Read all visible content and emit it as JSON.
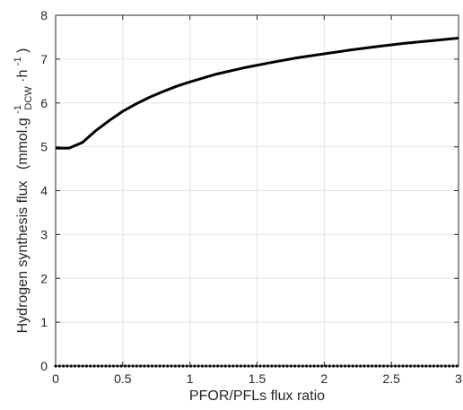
{
  "chart_data": {
    "type": "line",
    "xlabel": "PFOR/PFLs flux ratio",
    "ylabel": {
      "main": "Hydrogen synthesis flux",
      "unit_open": "(mmol.g",
      "sup1": "-1",
      "sub": "DCW",
      "unit_mid": "·h",
      "sup2": "-1",
      "unit_close": ")"
    },
    "xlim": [
      0,
      3
    ],
    "ylim": [
      0,
      8
    ],
    "xticks": [
      0,
      0.5,
      1,
      1.5,
      2,
      2.5,
      3
    ],
    "xtick_labels": [
      "0",
      "0.5",
      "1",
      "1.5",
      "2",
      "2.5",
      "3"
    ],
    "yticks": [
      0,
      1,
      2,
      3,
      4,
      5,
      6,
      7,
      8
    ],
    "ytick_labels": [
      "0",
      "1",
      "2",
      "3",
      "4",
      "5",
      "6",
      "7",
      "8"
    ],
    "grid": true,
    "series": [
      {
        "style": "solid",
        "color": "#000000",
        "x": [
          0,
          0.1,
          0.2,
          0.3,
          0.4,
          0.5,
          0.6,
          0.7,
          0.8,
          0.9,
          1.0,
          1.2,
          1.4,
          1.6,
          1.8,
          2.0,
          2.2,
          2.4,
          2.6,
          2.8,
          3.0
        ],
        "y": [
          4.97,
          4.97,
          5.1,
          5.37,
          5.6,
          5.81,
          5.98,
          6.13,
          6.26,
          6.38,
          6.48,
          6.66,
          6.8,
          6.92,
          7.03,
          7.12,
          7.21,
          7.29,
          7.36,
          7.42,
          7.48
        ]
      },
      {
        "style": "dotted",
        "color": "#000000",
        "x": [
          0,
          3
        ],
        "y": [
          0,
          0
        ]
      }
    ]
  }
}
